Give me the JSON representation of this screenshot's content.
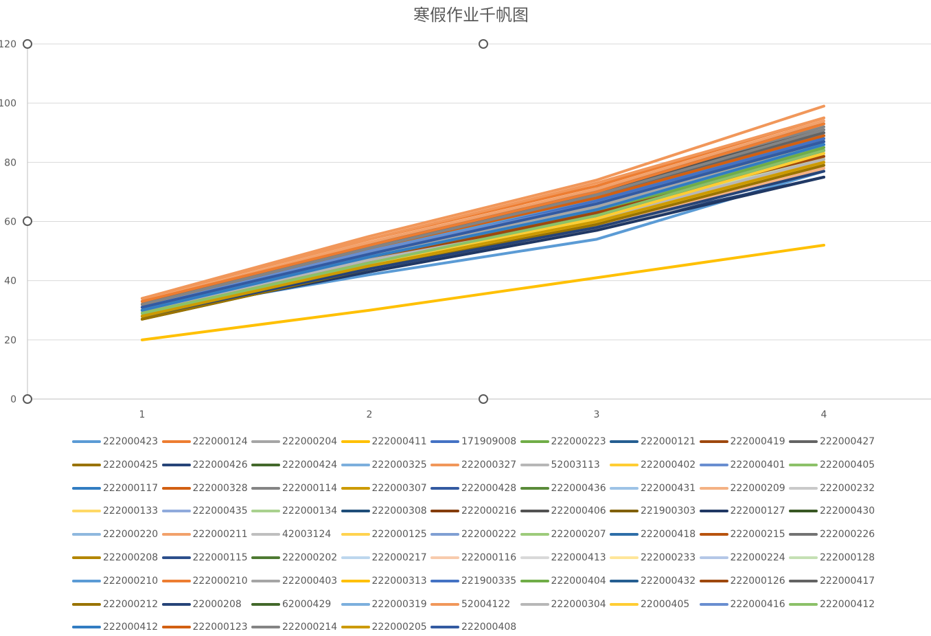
{
  "chart_data": {
    "type": "line",
    "title": "寒假作业千帆图",
    "x": [
      1,
      2,
      3,
      4
    ],
    "x_tick_labels": [
      "1",
      "2",
      "3",
      "4"
    ],
    "y_tick_labels": [
      "0",
      "20",
      "40",
      "60",
      "80",
      "100",
      "120"
    ],
    "ylim": [
      0,
      120
    ],
    "grid": true,
    "legend_position": "bottom",
    "series": [
      {
        "name": "222000423",
        "color": "#5B9BD5",
        "values": [
          29,
          42,
          54,
          77
        ]
      },
      {
        "name": "222000124",
        "color": "#ED7D31",
        "values": [
          34,
          54,
          72,
          95
        ]
      },
      {
        "name": "222000204",
        "color": "#A5A5A5",
        "values": [
          32,
          50,
          66,
          88
        ]
      },
      {
        "name": "222000411",
        "color": "#FFC000",
        "values": [
          20,
          30,
          41,
          52
        ]
      },
      {
        "name": "171909008",
        "color": "#4472C4",
        "values": [
          30,
          48,
          66,
          86
        ]
      },
      {
        "name": "222000223",
        "color": "#70AD47",
        "values": [
          29,
          46,
          62,
          84
        ]
      },
      {
        "name": "222000121",
        "color": "#255E91",
        "values": [
          31,
          49,
          64,
          85
        ]
      },
      {
        "name": "222000419",
        "color": "#9E480E",
        "values": [
          28,
          45,
          61,
          82
        ]
      },
      {
        "name": "222000427",
        "color": "#636363",
        "values": [
          33,
          52,
          71,
          93
        ]
      },
      {
        "name": "222000425",
        "color": "#997300",
        "values": [
          27,
          44,
          60,
          80
        ]
      },
      {
        "name": "222000426",
        "color": "#264478",
        "values": [
          28,
          43,
          58,
          75
        ]
      },
      {
        "name": "222000424",
        "color": "#43682B",
        "values": [
          30,
          47,
          65,
          89
        ]
      },
      {
        "name": "222000325",
        "color": "#7CAFDD",
        "values": [
          31,
          50,
          68,
          90
        ]
      },
      {
        "name": "222000327",
        "color": "#F1975A",
        "values": [
          34,
          55,
          74,
          99
        ]
      },
      {
        "name": "52003113",
        "color": "#B7B7B7",
        "values": [
          30,
          46,
          57,
          78
        ]
      },
      {
        "name": "222000402",
        "color": "#FFCD33",
        "values": [
          28,
          44,
          60,
          81
        ]
      },
      {
        "name": "222000401",
        "color": "#698ED0",
        "values": [
          31,
          50,
          67,
          90
        ]
      },
      {
        "name": "222000405",
        "color": "#8CC168",
        "values": [
          29,
          46,
          62,
          83
        ]
      },
      {
        "name": "222000117",
        "color": "#327DC2",
        "values": [
          30,
          47,
          63,
          84
        ]
      },
      {
        "name": "222000328",
        "color": "#D26012",
        "values": [
          32,
          50,
          65,
          88
        ]
      },
      {
        "name": "222000114",
        "color": "#848484",
        "values": [
          33,
          52,
          70,
          92
        ]
      },
      {
        "name": "222000307",
        "color": "#CC9A00",
        "values": [
          29,
          46,
          62,
          84
        ]
      },
      {
        "name": "222000428",
        "color": "#335AA1",
        "values": [
          30,
          48,
          65,
          86
        ]
      },
      {
        "name": "222000436",
        "color": "#5A8B39",
        "values": [
          30,
          48,
          65,
          89
        ]
      },
      {
        "name": "222000431",
        "color": "#9DC3E6",
        "values": [
          29,
          46,
          62,
          83
        ]
      },
      {
        "name": "222000209",
        "color": "#F4B183",
        "values": [
          28,
          44,
          58,
          78
        ]
      },
      {
        "name": "222000232",
        "color": "#C9C9C9",
        "values": [
          31,
          48,
          62,
          82
        ]
      },
      {
        "name": "222000133",
        "color": "#FFD966",
        "values": [
          28,
          44,
          60,
          82
        ]
      },
      {
        "name": "222000435",
        "color": "#8FAADC",
        "values": [
          30,
          47,
          64,
          85
        ]
      },
      {
        "name": "222000134",
        "color": "#A9D18E",
        "values": [
          29,
          46,
          61,
          82
        ]
      },
      {
        "name": "222000308",
        "color": "#1F4E79",
        "values": [
          30,
          47,
          63,
          84
        ]
      },
      {
        "name": "222000216",
        "color": "#843C0C",
        "values": [
          28,
          44,
          59,
          79
        ]
      },
      {
        "name": "222000406",
        "color": "#525252",
        "values": [
          33,
          51,
          70,
          91
        ]
      },
      {
        "name": "221900303",
        "color": "#806000",
        "values": [
          27,
          44,
          59,
          80
        ]
      },
      {
        "name": "222000127",
        "color": "#203864",
        "values": [
          28,
          43,
          57,
          75
        ]
      },
      {
        "name": "222000430",
        "color": "#385723",
        "values": [
          30,
          48,
          64,
          88
        ]
      },
      {
        "name": "222000220",
        "color": "#8FB8DE",
        "values": [
          30,
          48,
          65,
          87
        ]
      },
      {
        "name": "222000211",
        "color": "#F2A16B",
        "values": [
          33,
          53,
          71,
          94
        ]
      },
      {
        "name": "42003124",
        "color": "#BFBFBF",
        "values": [
          31,
          49,
          64,
          84
        ]
      },
      {
        "name": "222000125",
        "color": "#FFD34F",
        "values": [
          28,
          45,
          60,
          82
        ]
      },
      {
        "name": "222000222",
        "color": "#7F9FD3",
        "values": [
          31,
          49,
          66,
          87
        ]
      },
      {
        "name": "222000207",
        "color": "#9DCB7B",
        "values": [
          29,
          46,
          62,
          83
        ]
      },
      {
        "name": "222000418",
        "color": "#2E6EA8",
        "values": [
          30,
          48,
          64,
          86
        ]
      },
      {
        "name": "222000215",
        "color": "#B8530E",
        "values": [
          32,
          51,
          68,
          89
        ]
      },
      {
        "name": "222000226",
        "color": "#737373",
        "values": [
          32,
          51,
          69,
          91
        ]
      },
      {
        "name": "222000208",
        "color": "#B38600",
        "values": [
          28,
          45,
          61,
          81
        ]
      },
      {
        "name": "222000115",
        "color": "#2C4F8C",
        "values": [
          29,
          46,
          62,
          83
        ]
      },
      {
        "name": "222000202",
        "color": "#4E7A32",
        "values": [
          30,
          47,
          64,
          87
        ]
      },
      {
        "name": "222000217",
        "color": "#BDD7EE",
        "values": [
          29,
          46,
          62,
          83
        ]
      },
      {
        "name": "222000116",
        "color": "#F8CBAD",
        "values": [
          28,
          44,
          59,
          79
        ]
      },
      {
        "name": "222000413",
        "color": "#D9D9D9",
        "values": [
          30,
          46,
          60,
          80
        ]
      },
      {
        "name": "222000233",
        "color": "#FFE699",
        "values": [
          28,
          44,
          59,
          80
        ]
      },
      {
        "name": "222000224",
        "color": "#B4C7E7",
        "values": [
          30,
          47,
          63,
          84
        ]
      },
      {
        "name": "222000128",
        "color": "#C5E0B4",
        "values": [
          29,
          45,
          61,
          82
        ]
      },
      {
        "name": "222000210",
        "color": "#5B9BD5",
        "values": [
          31,
          50,
          67,
          89
        ]
      },
      {
        "name": "222000210",
        "color": "#ED7D31",
        "values": [
          33,
          52,
          70,
          93
        ]
      },
      {
        "name": "222000403",
        "color": "#A5A5A5",
        "values": [
          31,
          49,
          65,
          86
        ]
      },
      {
        "name": "222000313",
        "color": "#FFC000",
        "values": [
          29,
          45,
          60,
          80
        ]
      },
      {
        "name": "221900335",
        "color": "#4472C4",
        "values": [
          31,
          49,
          67,
          88
        ]
      },
      {
        "name": "222000404",
        "color": "#70AD47",
        "values": [
          30,
          47,
          63,
          85
        ]
      },
      {
        "name": "222000432",
        "color": "#255E91",
        "values": [
          29,
          46,
          62,
          84
        ]
      },
      {
        "name": "222000126",
        "color": "#9E480E",
        "values": [
          30,
          47,
          63,
          82
        ]
      },
      {
        "name": "222000417",
        "color": "#636363",
        "values": [
          32,
          51,
          69,
          90
        ]
      },
      {
        "name": "222000212",
        "color": "#997300",
        "values": [
          27,
          44,
          59,
          79
        ]
      },
      {
        "name": "22000208",
        "color": "#264478",
        "values": [
          28,
          44,
          58,
          77
        ]
      },
      {
        "name": "62000429",
        "color": "#43682B",
        "values": [
          29,
          46,
          62,
          84
        ]
      },
      {
        "name": "222000319",
        "color": "#7CAFDD",
        "values": [
          30,
          48,
          64,
          86
        ]
      },
      {
        "name": "52004122",
        "color": "#F1975A",
        "values": [
          34,
          54,
          73,
          95
        ]
      },
      {
        "name": "222000304",
        "color": "#B7B7B7",
        "values": [
          30,
          47,
          61,
          81
        ]
      },
      {
        "name": "22000405",
        "color": "#FFCD33",
        "values": [
          29,
          46,
          61,
          83
        ]
      },
      {
        "name": "222000416",
        "color": "#698ED0",
        "values": [
          31,
          50,
          66,
          87
        ]
      },
      {
        "name": "222000412",
        "color": "#8CC168",
        "values": [
          29,
          46,
          62,
          84
        ]
      },
      {
        "name": "222000412",
        "color": "#327DC2",
        "values": [
          30,
          48,
          64,
          86
        ]
      },
      {
        "name": "222000123",
        "color": "#D26012",
        "values": [
          32,
          51,
          68,
          89
        ]
      },
      {
        "name": "222000214",
        "color": "#848484",
        "values": [
          32,
          51,
          69,
          91
        ]
      },
      {
        "name": "222000205",
        "color": "#CC9A00",
        "values": [
          28,
          45,
          60,
          80
        ]
      },
      {
        "name": "222000408",
        "color": "#335AA1",
        "values": [
          31,
          49,
          66,
          87
        ]
      }
    ]
  }
}
